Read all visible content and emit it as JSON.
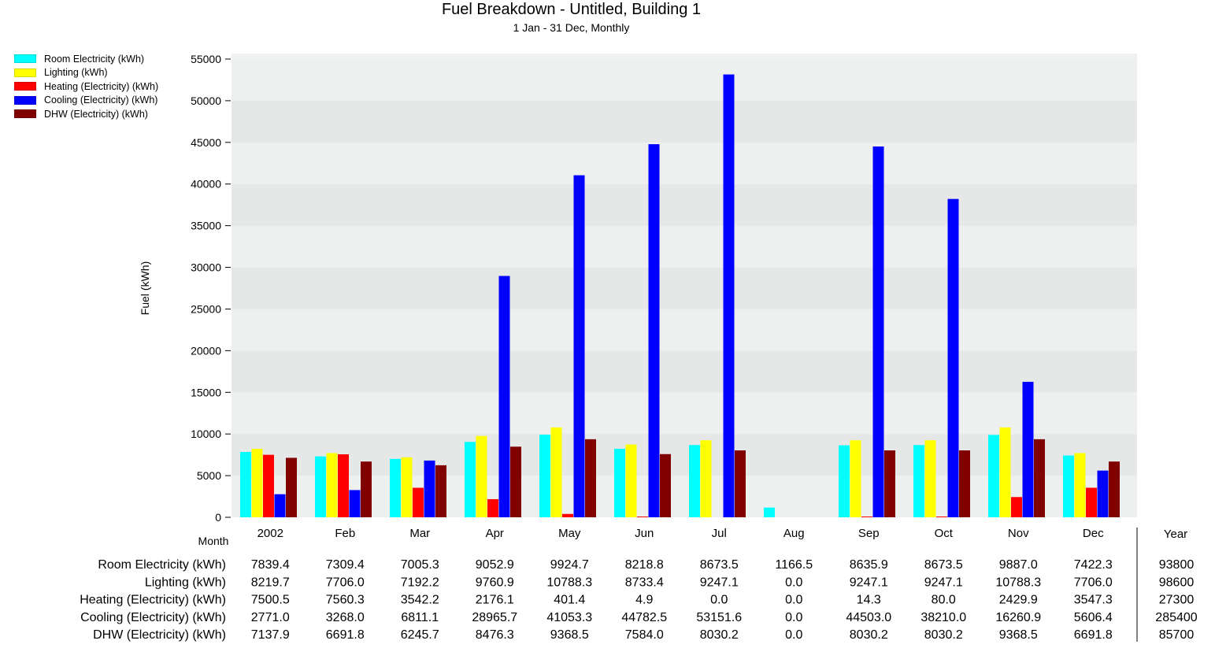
{
  "chart_data": {
    "type": "bar",
    "title": "Fuel Breakdown - Untitled, Building 1",
    "subtitle": "1 Jan - 31 Dec, Monthly",
    "xlabel": "Month",
    "ylabel": "Fuel (kWh)",
    "ylim": [
      0,
      55000
    ],
    "yticks": [
      0,
      5000,
      10000,
      15000,
      20000,
      25000,
      30000,
      35000,
      40000,
      45000,
      50000,
      55000
    ],
    "categories": [
      "2002",
      "Feb",
      "Mar",
      "Apr",
      "May",
      "Jun",
      "Jul",
      "Aug",
      "Sep",
      "Oct",
      "Nov",
      "Dec"
    ],
    "grid": "alternating horizontal bands",
    "legend_position": "top-left",
    "year_column_label": "Year",
    "series": [
      {
        "name": "Room Electricity (kWh)",
        "color": "#00ffff",
        "values": [
          7839.4,
          7309.4,
          7005.3,
          9052.9,
          9924.7,
          8218.8,
          8673.5,
          1166.5,
          8635.9,
          8673.5,
          9887.0,
          7422.3
        ],
        "labels": [
          "7839.4",
          "7309.4",
          "7005.3",
          "9052.9",
          "9924.7",
          "8218.8",
          "8673.5",
          "1166.5",
          "8635.9",
          "8673.5",
          "9887.0",
          "7422.3"
        ],
        "year": "93800"
      },
      {
        "name": "Lighting (kWh)",
        "color": "#ffff00",
        "values": [
          8219.7,
          7706.0,
          7192.2,
          9760.9,
          10788.3,
          8733.4,
          9247.1,
          0.0,
          9247.1,
          9247.1,
          10788.3,
          7706.0
        ],
        "labels": [
          "8219.7",
          "7706.0",
          "7192.2",
          "9760.9",
          "10788.3",
          "8733.4",
          "9247.1",
          "0.0",
          "9247.1",
          "9247.1",
          "10788.3",
          "7706.0"
        ],
        "year": "98600"
      },
      {
        "name": "Heating (Electricity) (kWh)",
        "color": "#ff0000",
        "values": [
          7500.5,
          7560.3,
          3542.2,
          2176.1,
          401.4,
          4.9,
          0.0,
          0.0,
          14.3,
          80.0,
          2429.9,
          3547.3
        ],
        "labels": [
          "7500.5",
          "7560.3",
          "3542.2",
          "2176.1",
          "401.4",
          "4.9",
          "0.0",
          "0.0",
          "14.3",
          "80.0",
          "2429.9",
          "3547.3"
        ],
        "year": "27300"
      },
      {
        "name": "Cooling (Electricity) (kWh)",
        "color": "#0000ff",
        "values": [
          2771.0,
          3268.0,
          6811.1,
          28965.7,
          41053.3,
          44782.5,
          53151.6,
          0.0,
          44503.0,
          38210.0,
          16260.9,
          5606.4
        ],
        "labels": [
          "2771.0",
          "3268.0",
          "6811.1",
          "28965.7",
          "41053.3",
          "44782.5",
          "53151.6",
          "0.0",
          "44503.0",
          "38210.0",
          "16260.9",
          "5606.4"
        ],
        "year": "285400"
      },
      {
        "name": "DHW (Electricity) (kWh)",
        "color": "#800000",
        "values": [
          7137.9,
          6691.8,
          6245.7,
          8476.3,
          9368.5,
          7584.0,
          8030.2,
          0.0,
          8030.2,
          8030.2,
          9368.5,
          6691.8
        ],
        "labels": [
          "7137.9",
          "6691.8",
          "6245.7",
          "8476.3",
          "9368.5",
          "7584.0",
          "8030.2",
          "0.0",
          "8030.2",
          "8030.2",
          "9368.5",
          "6691.8"
        ],
        "year": "85700"
      }
    ]
  }
}
